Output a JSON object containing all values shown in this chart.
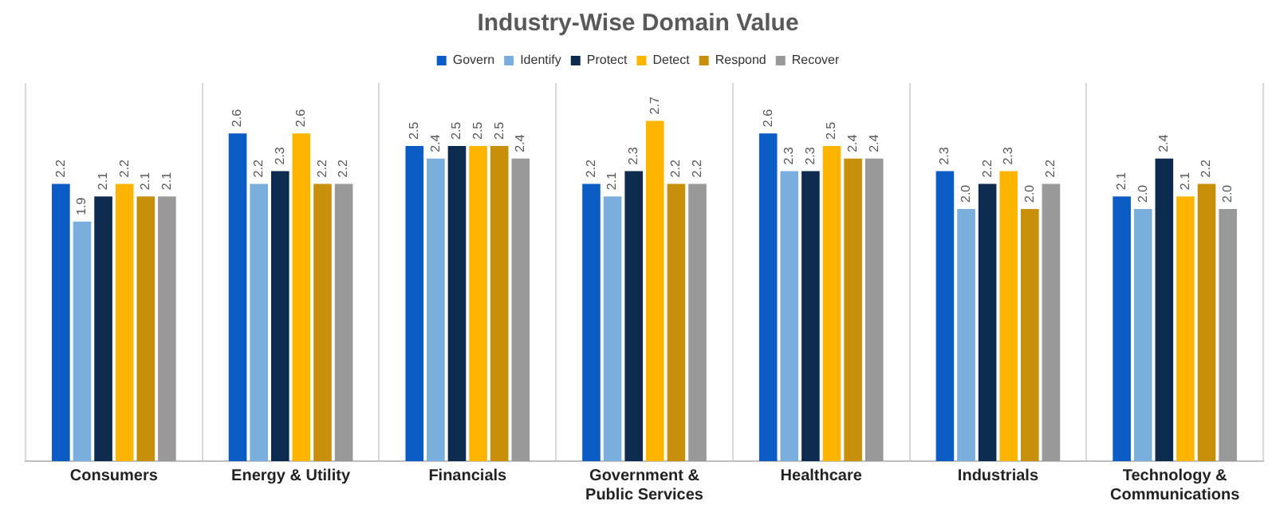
{
  "chart_data": {
    "type": "bar",
    "title": "Industry-Wise Domain Value",
    "categories": [
      "Consumers",
      "Energy & Utility",
      "Financials",
      "Government & Public Services",
      "Healthcare",
      "Industrials",
      "Technology & Communications"
    ],
    "series": [
      {
        "name": "Govern",
        "color": "#0b5cc4",
        "values": [
          2.2,
          2.6,
          2.5,
          2.2,
          2.6,
          2.3,
          2.1
        ]
      },
      {
        "name": "Identify",
        "color": "#7aaedc",
        "values": [
          1.9,
          2.2,
          2.4,
          2.1,
          2.3,
          2.0,
          2.0
        ],
        "value_labels": [
          "1.9",
          "2.2",
          "2.4",
          "2.1",
          "2.3",
          "2.0",
          "2.0"
        ]
      },
      {
        "name": "Protect",
        "color": "#0d2a4f",
        "values": [
          2.1,
          2.3,
          2.5,
          2.3,
          2.3,
          2.2,
          2.4
        ]
      },
      {
        "name": "Detect",
        "color": "#ffb400",
        "values": [
          2.2,
          2.6,
          2.5,
          2.7,
          2.5,
          2.3,
          2.1
        ]
      },
      {
        "name": "Respond",
        "color": "#c8900a",
        "values": [
          2.1,
          2.2,
          2.5,
          2.2,
          2.4,
          2.0,
          2.2
        ],
        "value_labels": [
          "2.1",
          "2.2",
          "2.5",
          "2.2",
          "2.4",
          "2.0",
          "2.2"
        ]
      },
      {
        "name": "Recover",
        "color": "#999999",
        "values": [
          2.1,
          2.2,
          2.4,
          2.2,
          2.4,
          2.2,
          2.0
        ],
        "value_labels": [
          "2.1",
          "2.2",
          "2.4",
          "2.2",
          "2.4",
          "2.2",
          "2.0"
        ]
      }
    ],
    "ylim": [
      0,
      3
    ],
    "tick_labels": "x",
    "grid": "x",
    "legend": "top",
    "data_labels": true
  }
}
